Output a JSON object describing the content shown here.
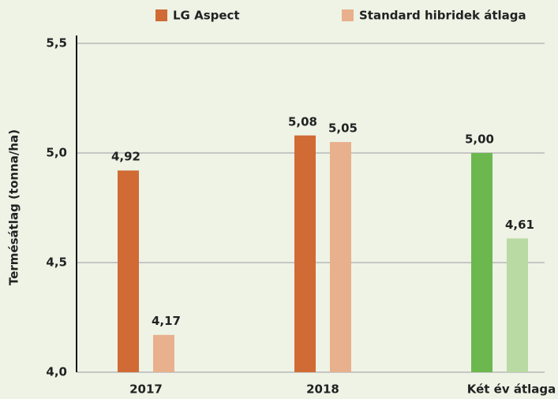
{
  "chart_data": {
    "type": "bar",
    "y_label": "Termésátlag (tonna/ha)",
    "categories": [
      "2017",
      "2018",
      "Két év átlaga"
    ],
    "series": [
      {
        "name": "LG Aspect",
        "color": "#d06b35",
        "colors": [
          "#d06b35",
          "#d06b35",
          "#6cb84e"
        ],
        "values": [
          4.92,
          5.08,
          5.0
        ],
        "value_labels": [
          "4,92",
          "5,08",
          "5,00"
        ]
      },
      {
        "name": "Standard hibridek átlaga",
        "color": "#e8b08c",
        "colors": [
          "#e8b08c",
          "#e8b08c",
          "#b9daa2"
        ],
        "values": [
          4.17,
          5.05,
          4.61
        ],
        "value_labels": [
          "4,17",
          "5,05",
          "4,61"
        ]
      }
    ],
    "ylim": [
      4.0,
      5.5
    ],
    "yticks": [
      {
        "value": 4.0,
        "label": "4,0"
      },
      {
        "value": 4.5,
        "label": "4,5"
      },
      {
        "value": 5.0,
        "label": "5,0"
      },
      {
        "value": 5.5,
        "label": "5,5"
      }
    ],
    "grid": true,
    "legend": "top"
  }
}
